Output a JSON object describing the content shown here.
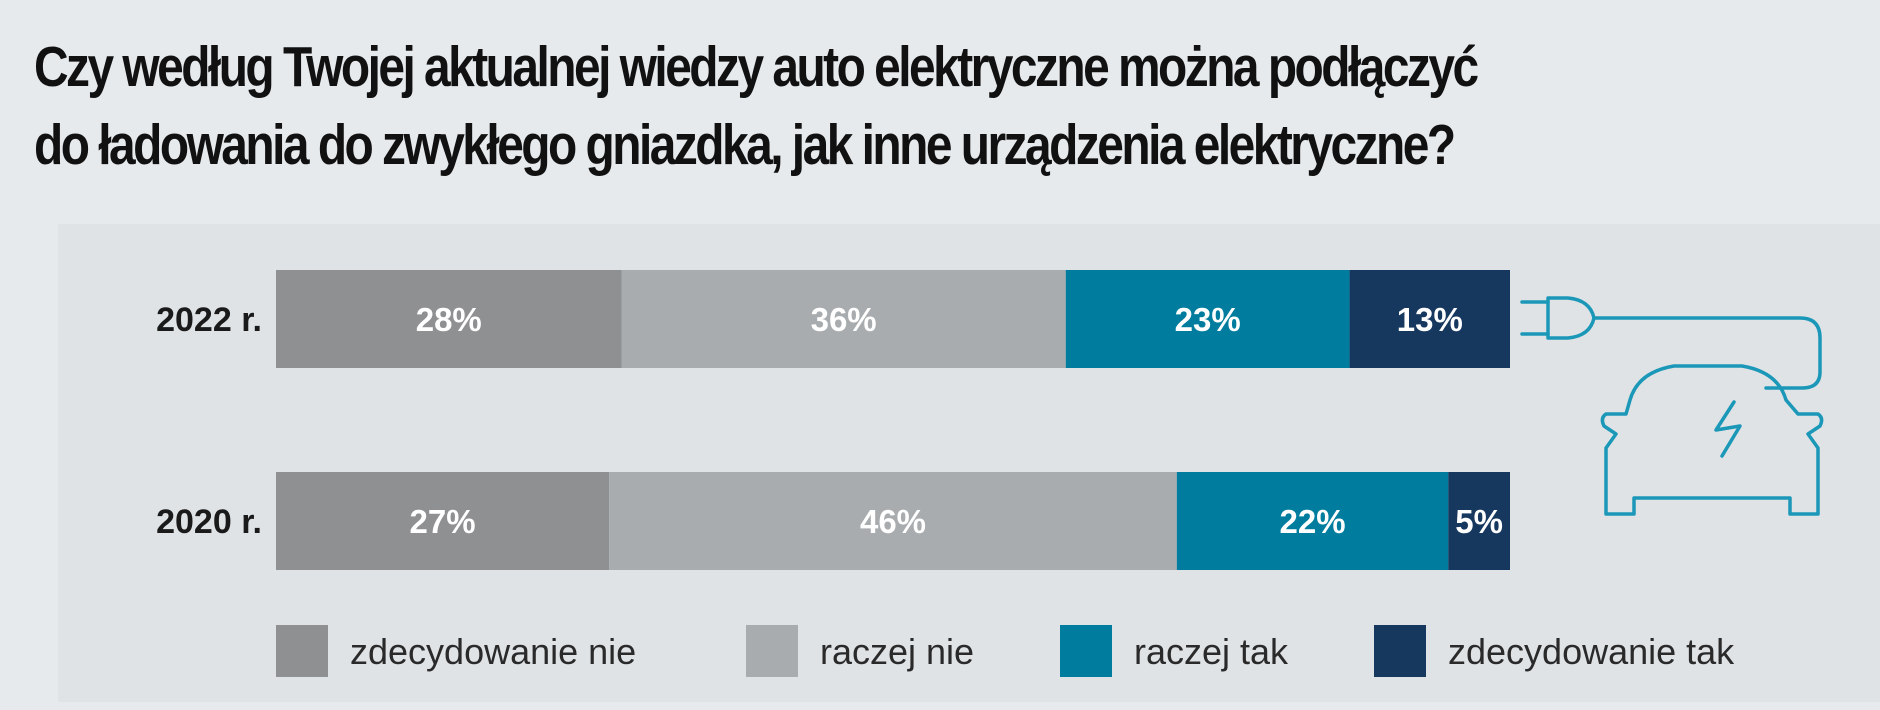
{
  "title": {
    "line1": "Czy według Twojej aktualnej wiedzy auto elektryczne można podłączyć",
    "line2": "do ładowania do zwykłego gniazdka, jak inne urządzenia elektryczne?"
  },
  "chart_data": {
    "type": "bar",
    "orientation": "horizontal",
    "stacked": true,
    "unit": "%",
    "categories": [
      "2022 r.",
      "2020 r."
    ],
    "series": [
      {
        "name": "zdecydowanie nie",
        "values": [
          28,
          27
        ],
        "color": "#8e9092"
      },
      {
        "name": "raczej nie",
        "values": [
          36,
          46
        ],
        "color": "#a9acae"
      },
      {
        "name": "raczej tak",
        "values": [
          23,
          22
        ],
        "color": "#007d9e"
      },
      {
        "name": "zdecydowanie tak",
        "values": [
          13,
          5
        ],
        "color": "#16385f"
      }
    ],
    "xlim": [
      0,
      100
    ],
    "grid": false,
    "legend": "bottom",
    "icon": "electric-car-plug-icon",
    "icon_color": "#1b98b8"
  }
}
